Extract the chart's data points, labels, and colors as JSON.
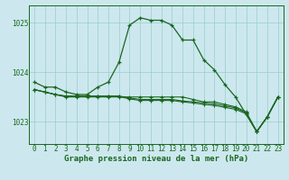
{
  "background_color": "#cce8ee",
  "grid_color": "#99cccc",
  "line_color": "#1a6620",
  "hours": [
    0,
    1,
    2,
    3,
    4,
    5,
    6,
    7,
    8,
    9,
    10,
    11,
    12,
    13,
    14,
    15,
    16,
    17,
    18,
    19,
    20,
    21,
    22,
    23
  ],
  "series_main": [
    1023.8,
    1023.7,
    1023.7,
    1023.6,
    1023.55,
    1023.55,
    1023.7,
    1023.8,
    1024.2,
    1024.95,
    1025.1,
    1025.05,
    1025.05,
    1024.95,
    1024.65,
    1024.65,
    1024.25,
    1024.05,
    1023.75,
    1023.5,
    1023.15,
    1022.8,
    1023.1,
    1023.5
  ],
  "series_line2": [
    1023.65,
    1023.6,
    1023.55,
    1023.5,
    1023.5,
    1023.5,
    1023.5,
    1023.5,
    1023.5,
    1023.5,
    1023.5,
    1023.5,
    1023.5,
    1023.5,
    1023.5,
    1023.45,
    1023.4,
    1023.4,
    1023.35,
    1023.3,
    1023.2,
    1022.8,
    1023.1,
    1023.5
  ],
  "series_line3": [
    1023.65,
    1023.6,
    1023.55,
    1023.52,
    1023.52,
    1023.52,
    1023.52,
    1023.52,
    1023.52,
    1023.48,
    1023.45,
    1023.45,
    1023.45,
    1023.45,
    1023.42,
    1023.4,
    1023.38,
    1023.36,
    1023.32,
    1023.28,
    1023.18,
    1022.8,
    1023.1,
    1023.5
  ],
  "series_line4": [
    1023.65,
    1023.6,
    1023.55,
    1023.51,
    1023.51,
    1023.51,
    1023.51,
    1023.51,
    1023.51,
    1023.46,
    1023.43,
    1023.43,
    1023.43,
    1023.43,
    1023.4,
    1023.38,
    1023.35,
    1023.33,
    1023.29,
    1023.25,
    1023.16,
    1022.8,
    1023.1,
    1023.5
  ],
  "ylim_min": 1022.55,
  "ylim_max": 1025.35,
  "yticks": [
    1023,
    1024,
    1025
  ],
  "ylabel_extra": 1025,
  "fontsize_label": 6.5,
  "fontsize_tick": 5.5
}
